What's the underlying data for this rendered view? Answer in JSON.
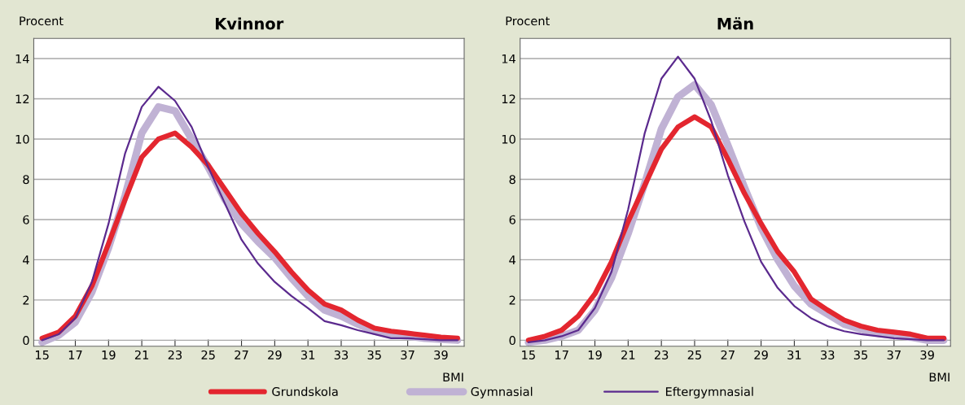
{
  "chart_data": [
    {
      "type": "line",
      "title": "Kvinnor",
      "ylabel": "Procent",
      "xlabel": "BMI",
      "x": [
        15,
        16,
        17,
        18,
        19,
        20,
        21,
        22,
        23,
        24,
        25,
        26,
        27,
        28,
        29,
        30,
        31,
        32,
        33,
        34,
        35,
        36,
        37,
        38,
        39,
        40
      ],
      "series": [
        {
          "name": "Grundskola",
          "color": "#e3262f",
          "values": [
            0.1,
            0.4,
            1.2,
            2.7,
            4.8,
            7.0,
            9.1,
            10.0,
            10.3,
            9.6,
            8.7,
            7.5,
            6.3,
            5.3,
            4.4,
            3.4,
            2.5,
            1.8,
            1.5,
            1.0,
            0.6,
            0.45,
            0.35,
            0.25,
            0.15,
            0.1
          ]
        },
        {
          "name": "Gymnasial",
          "color": "#c0b2d4",
          "values": [
            -0.1,
            0.25,
            0.9,
            2.4,
            4.6,
            7.2,
            10.3,
            11.6,
            11.4,
            10.0,
            8.6,
            7.0,
            5.8,
            4.9,
            4.1,
            3.1,
            2.2,
            1.5,
            1.2,
            0.8,
            0.45,
            0.3,
            0.2,
            0.1,
            0.05,
            0.0
          ]
        },
        {
          "name": "Eftergymnasial",
          "color": "#5b2a8e",
          "values": [
            0.0,
            0.3,
            1.1,
            2.9,
            5.8,
            9.3,
            11.6,
            12.6,
            11.9,
            10.6,
            8.6,
            6.8,
            5.0,
            3.8,
            2.9,
            2.2,
            1.6,
            0.95,
            0.75,
            0.5,
            0.3,
            0.1,
            0.1,
            0.05,
            0.0,
            0.0
          ]
        }
      ],
      "xlim": [
        14.5,
        40.4
      ],
      "ylim": [
        -0.3,
        15
      ],
      "xticks": [
        15,
        17,
        19,
        21,
        23,
        25,
        27,
        29,
        31,
        33,
        35,
        37,
        39
      ],
      "yticks": [
        0,
        2,
        4,
        6,
        8,
        10,
        12,
        14
      ],
      "grid": "y",
      "legend": "bottom",
      "marker": "none",
      "line_style": "solid"
    },
    {
      "type": "line",
      "title": "Män",
      "ylabel": "Procent",
      "xlabel": "BMI",
      "x": [
        15,
        16,
        17,
        18,
        19,
        20,
        21,
        22,
        23,
        24,
        25,
        26,
        27,
        28,
        29,
        30,
        31,
        32,
        33,
        34,
        35,
        36,
        37,
        38,
        39,
        40
      ],
      "series": [
        {
          "color": "#e3262f",
          "values": [
            0.0,
            0.2,
            0.5,
            1.2,
            2.3,
            3.9,
            5.9,
            7.7,
            9.5,
            10.6,
            11.1,
            10.6,
            9.0,
            7.3,
            5.8,
            4.4,
            3.4,
            2.05,
            1.5,
            1.0,
            0.7,
            0.5,
            0.4,
            0.3,
            0.1,
            0.1
          ]
        },
        {
          "color": "#c0b2d4",
          "values": [
            -0.1,
            0.0,
            0.2,
            0.5,
            1.5,
            3.1,
            5.3,
            7.8,
            10.5,
            12.1,
            12.7,
            11.7,
            9.7,
            7.6,
            5.6,
            4.0,
            2.7,
            1.8,
            1.3,
            0.8,
            0.55,
            0.35,
            0.25,
            0.15,
            0.0,
            0.0
          ]
        },
        {
          "color": "#5b2a8e",
          "values": [
            -0.1,
            0.0,
            0.2,
            0.5,
            1.6,
            3.4,
            6.5,
            10.3,
            13.0,
            14.1,
            13.0,
            10.9,
            8.2,
            5.9,
            3.9,
            2.6,
            1.7,
            1.1,
            0.7,
            0.45,
            0.3,
            0.2,
            0.1,
            0.05,
            0.0,
            0.0
          ]
        }
      ],
      "xlim": [
        14.5,
        40.4
      ],
      "ylim": [
        -0.3,
        15
      ],
      "xticks": [
        15,
        17,
        19,
        21,
        23,
        25,
        27,
        29,
        31,
        33,
        35,
        37,
        39
      ],
      "yticks": [
        0,
        2,
        4,
        6,
        8,
        10,
        12,
        14
      ],
      "grid": "y",
      "marker": "none",
      "line_style": "solid"
    }
  ]
}
